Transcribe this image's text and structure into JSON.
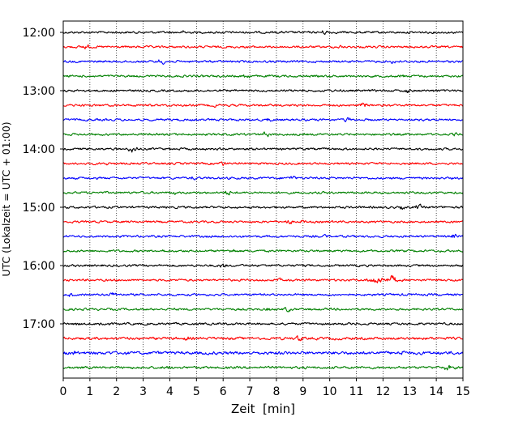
{
  "chart_data": {
    "type": "line",
    "subtype": "helicorder",
    "xlabel": "Zeit  [min]",
    "ylabel": "UTC (Lokalzeit = UTC + 01:00)",
    "xlim": [
      0,
      15
    ],
    "x_ticks": [
      0,
      1,
      2,
      3,
      4,
      5,
      6,
      7,
      8,
      9,
      10,
      11,
      12,
      13,
      14,
      15
    ],
    "y_tick_labels": [
      "12:00",
      "13:00",
      "14:00",
      "15:00",
      "16:00",
      "17:00"
    ],
    "grid": "vertical dotted at each minute",
    "trace_interval_minutes": 15,
    "traces": [
      {
        "start": "12:00",
        "color": "#000000",
        "amplitude": 1.0
      },
      {
        "start": "12:15",
        "color": "#ff0000",
        "amplitude": 1.0
      },
      {
        "start": "12:30",
        "color": "#0000ff",
        "amplitude": 1.0
      },
      {
        "start": "12:45",
        "color": "#008000",
        "amplitude": 1.0
      },
      {
        "start": "13:00",
        "color": "#000000",
        "amplitude": 1.0
      },
      {
        "start": "13:15",
        "color": "#ff0000",
        "amplitude": 1.0
      },
      {
        "start": "13:30",
        "color": "#0000ff",
        "amplitude": 1.0
      },
      {
        "start": "13:45",
        "color": "#008000",
        "amplitude": 1.0
      },
      {
        "start": "14:00",
        "color": "#000000",
        "amplitude": 1.0
      },
      {
        "start": "14:15",
        "color": "#ff0000",
        "amplitude": 1.0
      },
      {
        "start": "14:30",
        "color": "#0000ff",
        "amplitude": 1.0
      },
      {
        "start": "14:45",
        "color": "#008000",
        "amplitude": 1.0
      },
      {
        "start": "15:00",
        "color": "#000000",
        "amplitude": 1.0
      },
      {
        "start": "15:15",
        "color": "#ff0000",
        "amplitude": 1.0
      },
      {
        "start": "15:30",
        "color": "#0000ff",
        "amplitude": 1.0
      },
      {
        "start": "15:45",
        "color": "#008000",
        "amplitude": 1.0
      },
      {
        "start": "16:00",
        "color": "#000000",
        "amplitude": 1.0
      },
      {
        "start": "16:15",
        "color": "#ff0000",
        "amplitude": 1.0,
        "event": {
          "start_min": 11.3,
          "end_min": 12.6,
          "peak_min": 11.8,
          "relative_amplitude": 3.5
        }
      },
      {
        "start": "16:30",
        "color": "#0000ff",
        "amplitude": 1.0
      },
      {
        "start": "16:45",
        "color": "#008000",
        "amplitude": 1.0
      },
      {
        "start": "17:00",
        "color": "#000000",
        "amplitude": 1.0
      },
      {
        "start": "17:15",
        "color": "#ff0000",
        "amplitude": 1.2
      },
      {
        "start": "17:30",
        "color": "#0000ff",
        "amplitude": 1.4
      },
      {
        "start": "17:45",
        "color": "#008000",
        "amplitude": 1.1
      }
    ]
  }
}
